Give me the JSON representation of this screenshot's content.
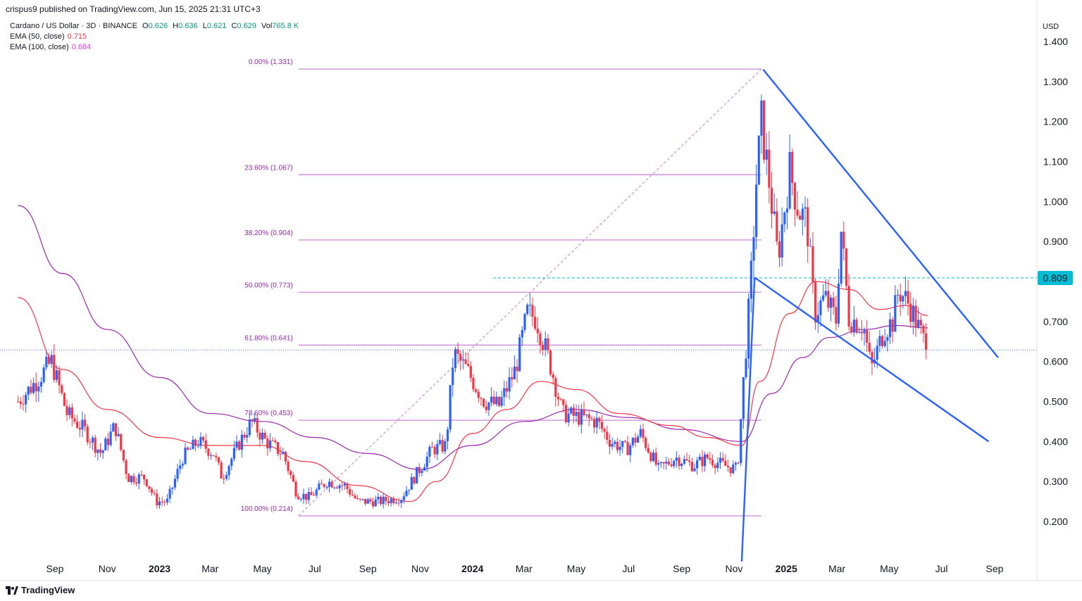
{
  "header": {
    "published": "crispus9 published on TradingView.com, Jun 15, 2025 21:31 UTC+3"
  },
  "legend": {
    "symbol": "Cardano / US Dollar · 3D · BINANCE",
    "open_label": "O",
    "open": "0.626",
    "high_label": "H",
    "high": "0.636",
    "low_label": "L",
    "low": "0.621",
    "close_label": "C",
    "close": "0.629",
    "vol_label": "Vol",
    "vol": "765.8 K",
    "ema50_label": "EMA (50, close)",
    "ema50": "0.715",
    "ema100_label": "EMA (100, close)",
    "ema100": "0.684"
  },
  "footer": {
    "brand": "TradingView"
  },
  "colors": {
    "up": "#2962ff",
    "down": "#f23645",
    "ema50": "#f23645",
    "ema100": "#9c27b0",
    "fib": "#ce93d8",
    "trend": "#2962ff",
    "resistance": "#00bcd4",
    "price_tag": "#00bcd4"
  },
  "chart_data": {
    "type": "candlestick",
    "title": "Cardano / US Dollar · 3D · BINANCE",
    "y_unit": "USD",
    "ylim": [
      0.1,
      1.45
    ],
    "y_ticks": [
      0.2,
      0.3,
      0.4,
      0.5,
      0.6,
      0.7,
      0.8,
      0.9,
      1.0,
      1.1,
      1.2,
      1.3,
      1.4
    ],
    "y_tick_labels": [
      "0.200",
      "0.300",
      "0.400",
      "0.500",
      "0.600",
      "0.700",
      "0.800",
      "0.900",
      "1.000",
      "1.100",
      "1.200",
      "1.300",
      "1.400"
    ],
    "x_ticks": [
      {
        "label": "Sep",
        "date": "2022-09"
      },
      {
        "label": "Nov",
        "date": "2022-11"
      },
      {
        "label": "2023",
        "date": "2023-01",
        "bold": true
      },
      {
        "label": "Mar",
        "date": "2023-03"
      },
      {
        "label": "May",
        "date": "2023-05"
      },
      {
        "label": "Jul",
        "date": "2023-07"
      },
      {
        "label": "Sep",
        "date": "2023-09"
      },
      {
        "label": "Nov",
        "date": "2023-11"
      },
      {
        "label": "2024",
        "date": "2024-01",
        "bold": true
      },
      {
        "label": "Mar",
        "date": "2024-03"
      },
      {
        "label": "May",
        "date": "2024-05"
      },
      {
        "label": "Jul",
        "date": "2024-07"
      },
      {
        "label": "Sep",
        "date": "2024-09"
      },
      {
        "label": "Nov",
        "date": "2024-11"
      },
      {
        "label": "2025",
        "date": "2025-01",
        "bold": true
      },
      {
        "label": "Mar",
        "date": "2025-03"
      },
      {
        "label": "May",
        "date": "2025-05"
      },
      {
        "label": "Jul",
        "date": "2025-07"
      },
      {
        "label": "Sep",
        "date": "2025-09"
      }
    ],
    "price_label": "0.809",
    "resistance_level": 0.809,
    "last_close": 0.629,
    "fibonacci": [
      {
        "label": "0.00% (1.331)",
        "value": 1.331
      },
      {
        "label": "23.60% (1.067)",
        "value": 1.067
      },
      {
        "label": "38.20% (0.904)",
        "value": 0.904
      },
      {
        "label": "50.00% (0.773)",
        "value": 0.773
      },
      {
        "label": "61.80% (0.641)",
        "value": 0.641
      },
      {
        "label": "78.60% (0.453)",
        "value": 0.453
      },
      {
        "label": "100.00% (0.214)",
        "value": 0.214
      }
    ],
    "price_path": [
      [
        "2022-07-20",
        0.5
      ],
      [
        "2022-08-10",
        0.55
      ],
      [
        "2022-08-28",
        0.6
      ],
      [
        "2022-09-15",
        0.47
      ],
      [
        "2022-10-05",
        0.43
      ],
      [
        "2022-10-25",
        0.37
      ],
      [
        "2022-11-10",
        0.44
      ],
      [
        "2022-11-25",
        0.31
      ],
      [
        "2022-12-15",
        0.31
      ],
      [
        "2022-12-28",
        0.25
      ],
      [
        "2023-01-10",
        0.25
      ],
      [
        "2023-01-28",
        0.36
      ],
      [
        "2023-02-15",
        0.4
      ],
      [
        "2023-03-05",
        0.37
      ],
      [
        "2023-03-15",
        0.31
      ],
      [
        "2023-04-05",
        0.4
      ],
      [
        "2023-04-18",
        0.45
      ],
      [
        "2023-05-05",
        0.4
      ],
      [
        "2023-05-25",
        0.37
      ],
      [
        "2023-06-10",
        0.27
      ],
      [
        "2023-06-25",
        0.26
      ],
      [
        "2023-07-15",
        0.3
      ],
      [
        "2023-08-05",
        0.29
      ],
      [
        "2023-08-20",
        0.25
      ],
      [
        "2023-09-15",
        0.25
      ],
      [
        "2023-10-10",
        0.26
      ],
      [
        "2023-10-25",
        0.31
      ],
      [
        "2023-11-15",
        0.38
      ],
      [
        "2023-12-01",
        0.39
      ],
      [
        "2023-12-10",
        0.62
      ],
      [
        "2023-12-25",
        0.58
      ],
      [
        "2024-01-15",
        0.5
      ],
      [
        "2024-02-01",
        0.49
      ],
      [
        "2024-02-20",
        0.58
      ],
      [
        "2024-03-05",
        0.72
      ],
      [
        "2024-03-15",
        0.71
      ],
      [
        "2024-04-01",
        0.59
      ],
      [
        "2024-04-15",
        0.47
      ],
      [
        "2024-05-05",
        0.46
      ],
      [
        "2024-05-25",
        0.45
      ],
      [
        "2024-06-10",
        0.4
      ],
      [
        "2024-06-28",
        0.38
      ],
      [
        "2024-07-15",
        0.42
      ],
      [
        "2024-08-05",
        0.33
      ],
      [
        "2024-08-25",
        0.36
      ],
      [
        "2024-09-15",
        0.34
      ],
      [
        "2024-10-01",
        0.36
      ],
      [
        "2024-10-20",
        0.34
      ],
      [
        "2024-11-05",
        0.33
      ],
      [
        "2024-11-12",
        0.55
      ],
      [
        "2024-11-20",
        0.78
      ],
      [
        "2024-11-27",
        1.05
      ],
      [
        "2024-12-03",
        1.2
      ],
      [
        "2024-12-12",
        1.05
      ],
      [
        "2024-12-22",
        0.86
      ],
      [
        "2025-01-05",
        1.08
      ],
      [
        "2025-01-15",
        0.98
      ],
      [
        "2025-01-25",
        0.95
      ],
      [
        "2025-02-03",
        0.72
      ],
      [
        "2025-02-15",
        0.76
      ],
      [
        "2025-03-01",
        0.7
      ],
      [
        "2025-03-05",
        0.95
      ],
      [
        "2025-03-15",
        0.71
      ],
      [
        "2025-04-01",
        0.69
      ],
      [
        "2025-04-10",
        0.58
      ],
      [
        "2025-04-25",
        0.68
      ],
      [
        "2025-05-05",
        0.7
      ],
      [
        "2025-05-12",
        0.78
      ],
      [
        "2025-05-25",
        0.74
      ],
      [
        "2025-06-05",
        0.68
      ],
      [
        "2025-06-15",
        0.629
      ]
    ],
    "ema50_path": [
      [
        "2022-07-20",
        0.76
      ],
      [
        "2022-09-10",
        0.58
      ],
      [
        "2022-11-01",
        0.48
      ],
      [
        "2023-01-01",
        0.41
      ],
      [
        "2023-03-01",
        0.39
      ],
      [
        "2023-05-01",
        0.39
      ],
      [
        "2023-06-20",
        0.35
      ],
      [
        "2023-08-20",
        0.29
      ],
      [
        "2023-10-20",
        0.25
      ],
      [
        "2023-11-20",
        0.3
      ],
      [
        "2024-01-01",
        0.42
      ],
      [
        "2024-02-10",
        0.48
      ],
      [
        "2024-03-20",
        0.55
      ],
      [
        "2024-05-01",
        0.53
      ],
      [
        "2024-06-20",
        0.47
      ],
      [
        "2024-08-20",
        0.44
      ],
      [
        "2024-10-01",
        0.41
      ],
      [
        "2024-11-10",
        0.39
      ],
      [
        "2024-12-01",
        0.55
      ],
      [
        "2025-01-05",
        0.72
      ],
      [
        "2025-02-05",
        0.8
      ],
      [
        "2025-03-15",
        0.78
      ],
      [
        "2025-04-20",
        0.73
      ],
      [
        "2025-05-20",
        0.74
      ],
      [
        "2025-06-15",
        0.715
      ]
    ],
    "ema100_path": [
      [
        "2022-07-20",
        0.99
      ],
      [
        "2022-09-10",
        0.82
      ],
      [
        "2022-11-01",
        0.68
      ],
      [
        "2023-01-01",
        0.56
      ],
      [
        "2023-03-01",
        0.47
      ],
      [
        "2023-05-01",
        0.45
      ],
      [
        "2023-07-01",
        0.41
      ],
      [
        "2023-09-01",
        0.37
      ],
      [
        "2023-11-01",
        0.33
      ],
      [
        "2024-01-01",
        0.39
      ],
      [
        "2024-03-01",
        0.45
      ],
      [
        "2024-05-01",
        0.48
      ],
      [
        "2024-07-01",
        0.46
      ],
      [
        "2024-09-01",
        0.43
      ],
      [
        "2024-11-10",
        0.4
      ],
      [
        "2024-12-15",
        0.52
      ],
      [
        "2025-01-20",
        0.61
      ],
      [
        "2025-02-20",
        0.66
      ],
      [
        "2025-04-01",
        0.68
      ],
      [
        "2025-05-10",
        0.69
      ],
      [
        "2025-06-15",
        0.684
      ]
    ],
    "fib_anchor": [
      [
        "2023-06-12",
        0.214
      ],
      [
        "2024-12-03",
        1.331
      ]
    ],
    "trendlines": [
      [
        [
          "2024-11-10",
          0.1
        ],
        [
          "2024-11-25",
          0.81
        ]
      ],
      [
        [
          "2024-11-25",
          0.81
        ],
        [
          "2025-08-25",
          0.4
        ]
      ],
      [
        [
          "2024-12-05",
          1.33
        ],
        [
          "2025-09-05",
          0.61
        ]
      ]
    ]
  }
}
